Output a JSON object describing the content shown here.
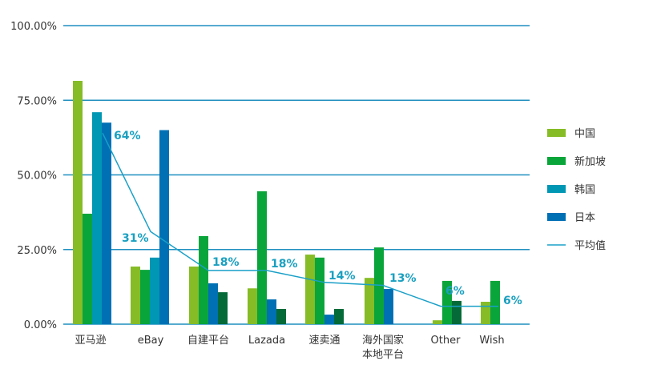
{
  "chart_data": {
    "type": "bar",
    "title": "",
    "xlabel": "",
    "ylabel": "",
    "ylim": [
      0,
      100
    ],
    "yticks": [
      "0.00%",
      "25.00%",
      "50.00%",
      "75.00%",
      "100.00%"
    ],
    "grid": true,
    "legend_position": "right",
    "categories": [
      "亚马逊",
      "eBay",
      "自建平台",
      "Lazada",
      "速卖通",
      "海外国家\n本地平台",
      "Other",
      "Wish"
    ],
    "category_lines": [
      [
        "亚马逊"
      ],
      [
        "eBay"
      ],
      [
        "自建平台"
      ],
      [
        "Lazada"
      ],
      [
        "速卖通"
      ],
      [
        "海外国家",
        "本地平台"
      ],
      [
        "Other"
      ],
      [
        "Wish"
      ]
    ],
    "series": [
      {
        "name": "中国",
        "color": "#86bc25",
        "values": [
          81.5,
          19.3,
          19.3,
          12.0,
          23.3,
          15.5,
          1.3,
          7.5
        ]
      },
      {
        "name": "新加坡",
        "color": "#0aa53a",
        "values": [
          37.0,
          18.2,
          29.5,
          44.5,
          22.3,
          25.7,
          14.5,
          14.5
        ]
      },
      {
        "name": "韩国",
        "color": "#0097b4",
        "values": [
          71.0,
          22.3,
          null,
          null,
          null,
          null,
          null,
          null
        ]
      },
      {
        "name": "日本",
        "color": "#0070b5",
        "values": [
          67.5,
          65.0,
          13.7,
          8.3,
          3.2,
          11.8,
          null,
          null
        ]
      },
      {
        "name": "",
        "color": "#046a38",
        "values": [
          null,
          null,
          10.7,
          5.1,
          5.1,
          null,
          7.8,
          null
        ],
        "in_legend": false
      }
    ],
    "line": {
      "name": "平均值",
      "color": "#1aa0c8",
      "values": [
        64,
        31,
        18,
        18,
        14,
        13,
        6,
        6
      ],
      "labels": [
        "64%",
        "31%",
        "18%",
        "18%",
        "14%",
        "13%",
        "6%",
        "6%"
      ]
    }
  }
}
